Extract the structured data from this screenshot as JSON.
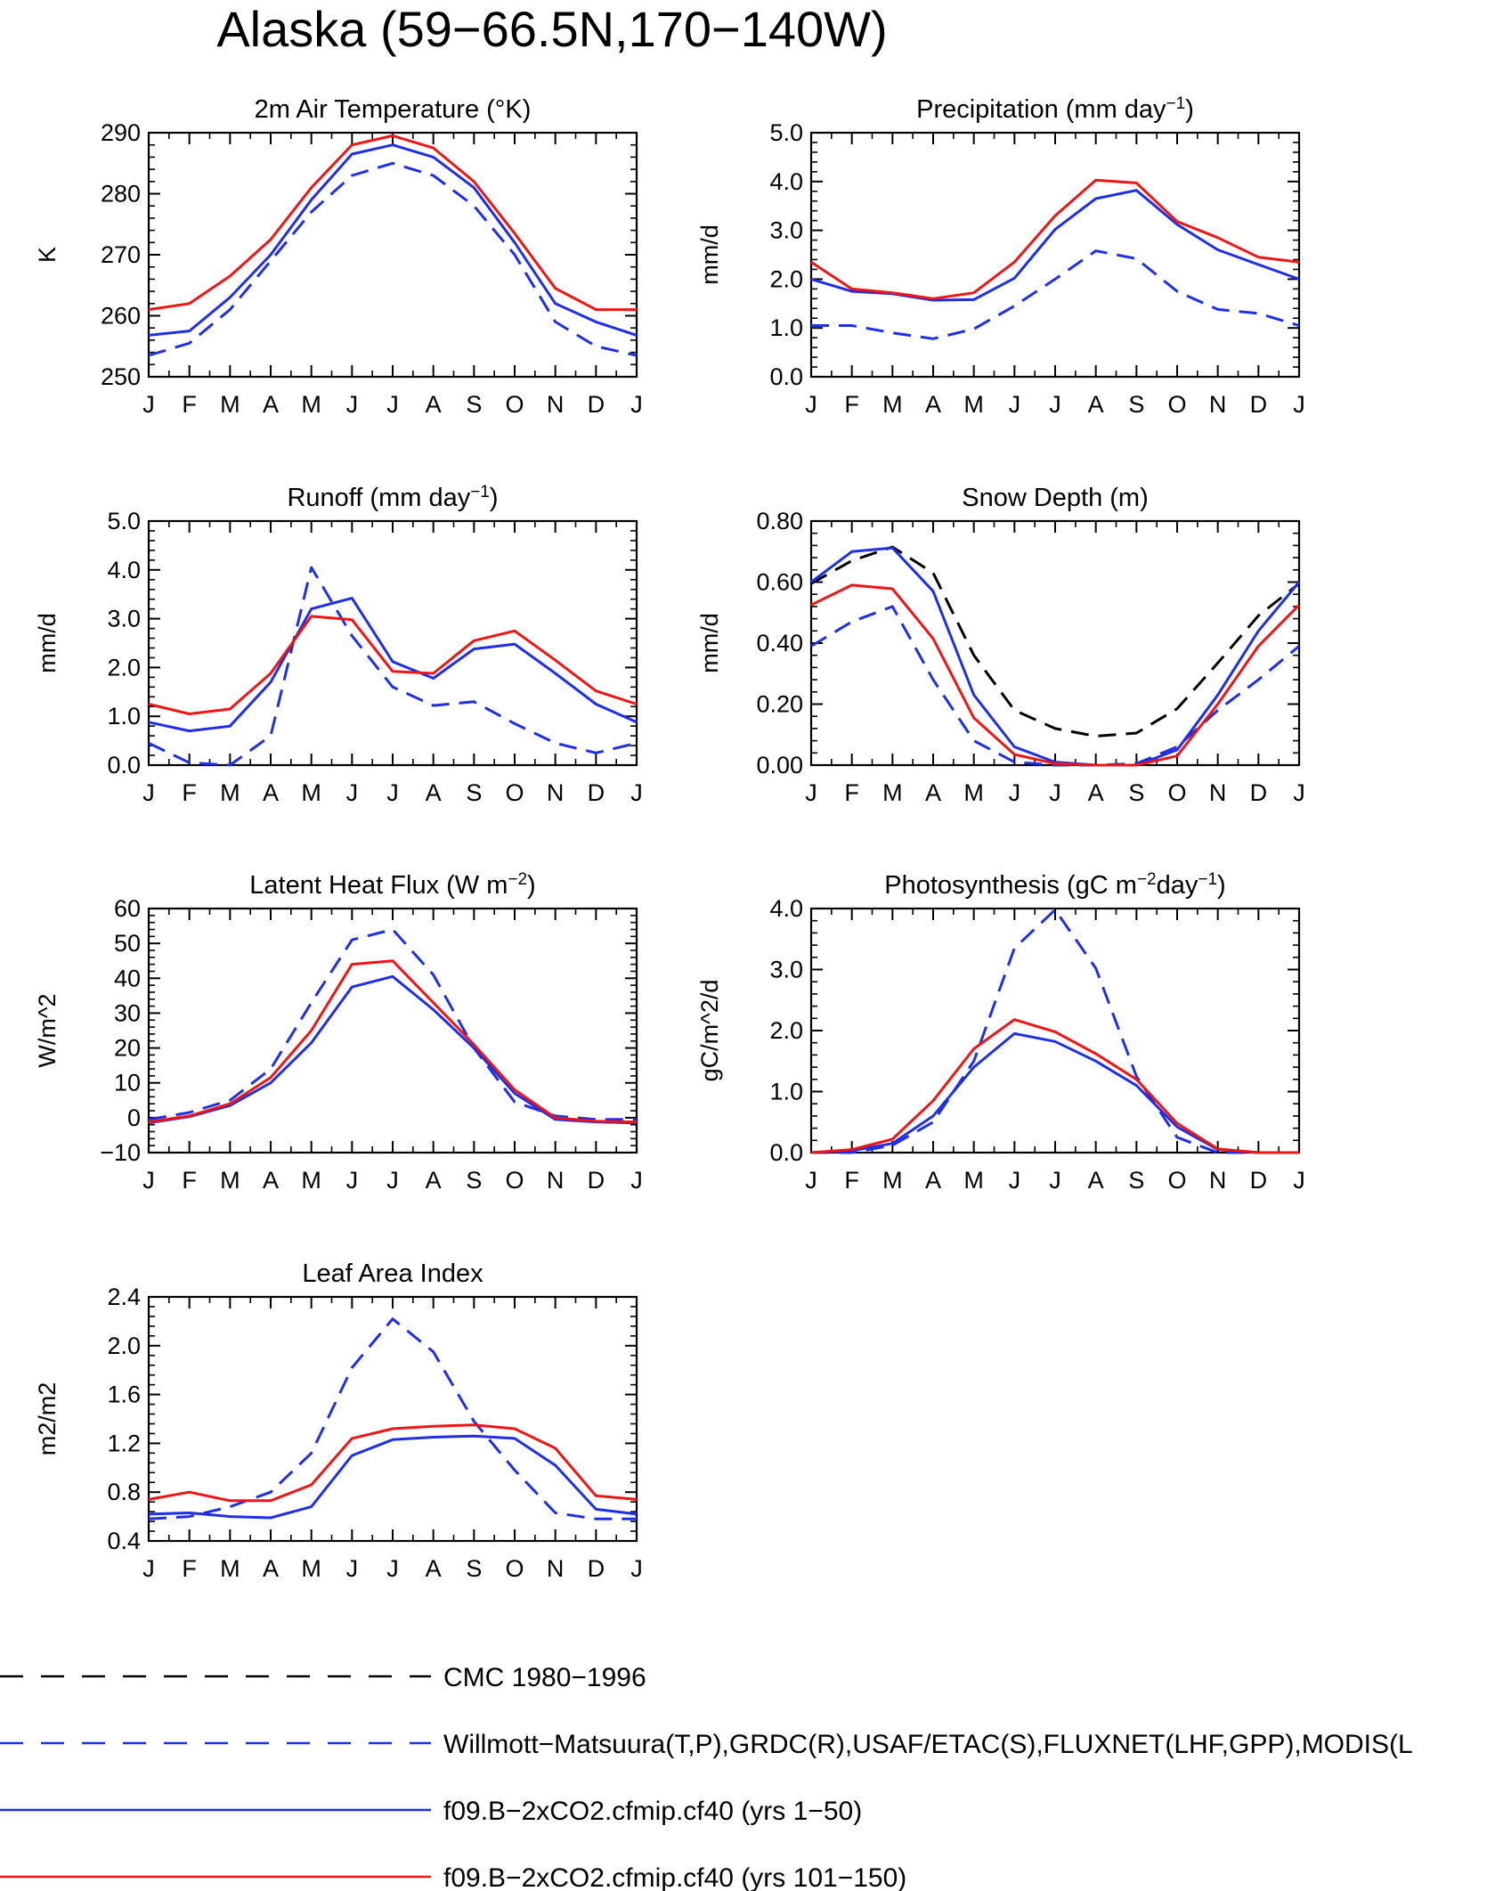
{
  "page": {
    "title": "Alaska (59−66.5N,170−140W)"
  },
  "months": [
    "J",
    "F",
    "M",
    "A",
    "M",
    "J",
    "J",
    "A",
    "S",
    "O",
    "N",
    "D",
    "J"
  ],
  "series_styles": {
    "cmc": {
      "color": "#000000",
      "dash": true
    },
    "obs": {
      "color": "#1f2fe6",
      "dash": true
    },
    "run1": {
      "color": "#1f2fe6",
      "dash": false
    },
    "run2": {
      "color": "#f01515",
      "dash": false
    }
  },
  "legend": [
    {
      "key": "cmc",
      "label": "CMC 1980−1996"
    },
    {
      "key": "obs",
      "label": "Willmott−Matsuura(T,P),GRDC(R),USAF/ETAC(S),FLUXNET(LHF,GPP),MODIS(L"
    },
    {
      "key": "run1",
      "label": "f09.B−2xCO2.cfmip.cf40 (yrs 1−50)"
    },
    {
      "key": "run2",
      "label": "f09.B−2xCO2.cfmip.cf40 (yrs 101−150)"
    }
  ],
  "chart_data": [
    {
      "type": "line",
      "title_parts": [
        {
          "t": "2m Air Temperature (°K)"
        }
      ],
      "ylabel": "K",
      "ylim": [
        250,
        290
      ],
      "yticks": [
        250,
        260,
        270,
        280,
        290
      ],
      "ytick_labels": [
        "250",
        "260",
        "270",
        "280",
        "290"
      ],
      "series": [
        {
          "key": "obs",
          "values": [
            253.5,
            255.5,
            261,
            269,
            277,
            283,
            285,
            283,
            278,
            270,
            259,
            255,
            253.5
          ]
        },
        {
          "key": "run1",
          "values": [
            256.8,
            257.5,
            263,
            270,
            279,
            286.5,
            288,
            286,
            281,
            272,
            262,
            259,
            256.8
          ]
        },
        {
          "key": "run2",
          "values": [
            261,
            262,
            266.5,
            272.5,
            281,
            288,
            289.5,
            287.5,
            282,
            273.5,
            264.5,
            261,
            261
          ]
        }
      ]
    },
    {
      "type": "line",
      "title_parts": [
        {
          "t": "Precipitation (mm day"
        },
        {
          "t": "−1",
          "sup": true
        },
        {
          "t": ")"
        }
      ],
      "ylabel": "mm/d",
      "ylim": [
        0,
        5
      ],
      "yticks": [
        0,
        1,
        2,
        3,
        4,
        5
      ],
      "ytick_labels": [
        "0.0",
        "1.0",
        "2.0",
        "3.0",
        "4.0",
        "5.0"
      ],
      "series": [
        {
          "key": "obs",
          "values": [
            1.05,
            1.05,
            0.9,
            0.78,
            0.98,
            1.45,
            2.0,
            2.58,
            2.42,
            1.75,
            1.38,
            1.3,
            1.05
          ]
        },
        {
          "key": "run1",
          "values": [
            2.0,
            1.75,
            1.7,
            1.57,
            1.58,
            2.02,
            3.02,
            3.65,
            3.82,
            3.12,
            2.6,
            2.3,
            2.0
          ]
        },
        {
          "key": "run2",
          "values": [
            2.35,
            1.8,
            1.72,
            1.6,
            1.72,
            2.35,
            3.3,
            4.03,
            3.97,
            3.18,
            2.85,
            2.45,
            2.35
          ]
        }
      ]
    },
    {
      "type": "line",
      "title_parts": [
        {
          "t": "Runoff (mm day"
        },
        {
          "t": "−1",
          "sup": true
        },
        {
          "t": ")"
        }
      ],
      "ylabel": "mm/d",
      "ylim": [
        0,
        5
      ],
      "yticks": [
        0,
        1,
        2,
        3,
        4,
        5
      ],
      "ytick_labels": [
        "0.0",
        "1.0",
        "2.0",
        "3.0",
        "4.0",
        "5.0"
      ],
      "series": [
        {
          "key": "obs",
          "values": [
            0.45,
            0.05,
            0.0,
            0.6,
            4.05,
            2.65,
            1.6,
            1.22,
            1.3,
            0.85,
            0.45,
            0.25,
            0.45
          ]
        },
        {
          "key": "run1",
          "values": [
            0.88,
            0.7,
            0.8,
            1.7,
            3.2,
            3.42,
            2.12,
            1.78,
            2.38,
            2.48,
            1.88,
            1.25,
            0.88
          ]
        },
        {
          "key": "run2",
          "values": [
            1.25,
            1.05,
            1.15,
            1.88,
            3.05,
            2.98,
            1.92,
            1.88,
            2.55,
            2.75,
            2.15,
            1.52,
            1.25
          ]
        }
      ]
    },
    {
      "type": "line",
      "title_parts": [
        {
          "t": "Snow Depth (m)"
        }
      ],
      "ylabel": "mm/d",
      "ylim": [
        0,
        0.8
      ],
      "yticks": [
        0,
        0.2,
        0.4,
        0.6,
        0.8
      ],
      "ytick_labels": [
        "0.00",
        "0.20",
        "0.40",
        "0.60",
        "0.80"
      ],
      "series": [
        {
          "key": "cmc",
          "values": [
            0.595,
            0.67,
            0.715,
            0.63,
            0.36,
            0.18,
            0.12,
            0.095,
            0.105,
            0.185,
            0.335,
            0.49,
            0.595
          ]
        },
        {
          "key": "obs",
          "values": [
            0.39,
            0.47,
            0.52,
            0.28,
            0.08,
            0.01,
            0.0,
            0.0,
            0.005,
            0.06,
            0.18,
            0.28,
            0.39
          ]
        },
        {
          "key": "run1",
          "values": [
            0.6,
            0.7,
            0.712,
            0.57,
            0.23,
            0.06,
            0.01,
            0.0,
            0.0,
            0.05,
            0.23,
            0.44,
            0.6
          ]
        },
        {
          "key": "run2",
          "values": [
            0.525,
            0.59,
            0.578,
            0.415,
            0.155,
            0.035,
            0.005,
            0.0,
            0.0,
            0.03,
            0.2,
            0.39,
            0.525
          ]
        }
      ]
    },
    {
      "type": "line",
      "title_parts": [
        {
          "t": "Latent Heat Flux (W m"
        },
        {
          "t": "−2",
          "sup": true
        },
        {
          "t": ")"
        }
      ],
      "ylabel": "W/m^2",
      "ylim": [
        -10,
        60
      ],
      "yticks": [
        -10,
        0,
        10,
        20,
        30,
        40,
        50,
        60
      ],
      "ytick_labels": [
        "−10",
        "0",
        "10",
        "20",
        "30",
        "40",
        "50",
        "60"
      ],
      "series": [
        {
          "key": "obs",
          "values": [
            -0.5,
            1.5,
            5,
            14,
            33,
            51,
            54,
            41,
            20,
            4.5,
            0.5,
            -0.5,
            -0.5
          ]
        },
        {
          "key": "run1",
          "values": [
            -1.5,
            0.3,
            3.5,
            10,
            21.5,
            37.5,
            40.5,
            31,
            20,
            7,
            -0.5,
            -1.2,
            -1.5
          ]
        },
        {
          "key": "run2",
          "values": [
            -1.2,
            0.5,
            4,
            11.5,
            25,
            44,
            45,
            33,
            21,
            8,
            0,
            -1,
            -1.2
          ]
        }
      ]
    },
    {
      "type": "line",
      "title_parts": [
        {
          "t": "Photosynthesis (gC m"
        },
        {
          "t": "−2",
          "sup": true
        },
        {
          "t": "day"
        },
        {
          "t": "−1",
          "sup": true
        },
        {
          "t": ")"
        }
      ],
      "ylabel": "gC/m^2/d",
      "ylim": [
        0,
        4
      ],
      "yticks": [
        0,
        1,
        2,
        3,
        4
      ],
      "ytick_labels": [
        "0.0",
        "1.0",
        "2.0",
        "3.0",
        "4.0"
      ],
      "series": [
        {
          "key": "obs",
          "values": [
            0.0,
            0.0,
            0.12,
            0.5,
            1.5,
            3.35,
            3.98,
            3.02,
            1.25,
            0.25,
            0.0,
            0.0,
            0.0
          ]
        },
        {
          "key": "run1",
          "values": [
            0.0,
            0.03,
            0.15,
            0.6,
            1.4,
            1.95,
            1.82,
            1.5,
            1.1,
            0.42,
            0.05,
            0.0,
            0.0
          ]
        },
        {
          "key": "run2",
          "values": [
            0.0,
            0.05,
            0.22,
            0.85,
            1.7,
            2.18,
            1.98,
            1.62,
            1.2,
            0.48,
            0.06,
            0.0,
            0.0
          ]
        }
      ]
    },
    {
      "type": "line",
      "title_parts": [
        {
          "t": "Leaf Area Index"
        }
      ],
      "ylabel": "m2/m2",
      "ylim": [
        0.4,
        2.4
      ],
      "yticks": [
        0.4,
        0.8,
        1.2,
        1.6,
        2.0,
        2.4
      ],
      "ytick_labels": [
        "0.4",
        "0.8",
        "1.2",
        "1.6",
        "2.0",
        "2.4"
      ],
      "series": [
        {
          "key": "obs",
          "values": [
            0.58,
            0.6,
            0.68,
            0.8,
            1.12,
            1.82,
            2.22,
            1.95,
            1.38,
            0.98,
            0.63,
            0.58,
            0.58
          ]
        },
        {
          "key": "run1",
          "values": [
            0.62,
            0.63,
            0.6,
            0.59,
            0.68,
            1.1,
            1.23,
            1.25,
            1.26,
            1.24,
            1.02,
            0.66,
            0.62
          ]
        },
        {
          "key": "run2",
          "values": [
            0.74,
            0.8,
            0.73,
            0.73,
            0.86,
            1.24,
            1.32,
            1.34,
            1.35,
            1.32,
            1.16,
            0.77,
            0.74
          ]
        }
      ]
    }
  ]
}
